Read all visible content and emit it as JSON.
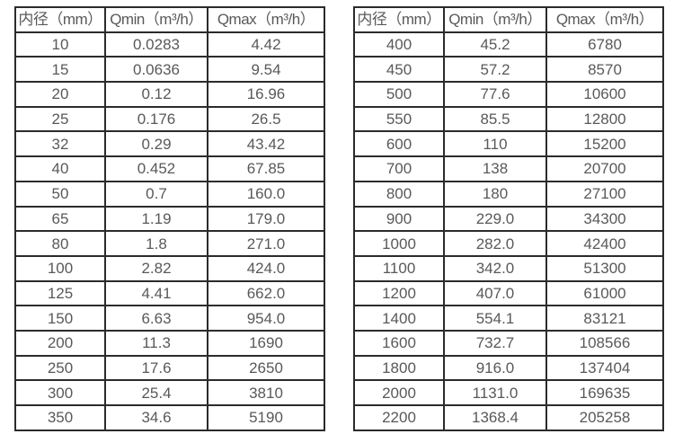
{
  "page": {
    "background": "#ffffff",
    "border_color": "#2b2b2b",
    "text_color": "#595959"
  },
  "chart_data": [
    {
      "type": "table",
      "title": "",
      "columns": [
        "内径（mm）",
        "Qmin（m³/h）",
        "Qmax（m³/h）"
      ],
      "rows": [
        [
          "10",
          "0.0283",
          "4.42"
        ],
        [
          "15",
          "0.0636",
          "9.54"
        ],
        [
          "20",
          "0.12",
          "16.96"
        ],
        [
          "25",
          "0.176",
          "26.5"
        ],
        [
          "32",
          "0.29",
          "43.42"
        ],
        [
          "40",
          "0.452",
          "67.85"
        ],
        [
          "50",
          "0.7",
          "160.0"
        ],
        [
          "65",
          "1.19",
          "179.0"
        ],
        [
          "80",
          "1.8",
          "271.0"
        ],
        [
          "100",
          "2.82",
          "424.0"
        ],
        [
          "125",
          "4.41",
          "662.0"
        ],
        [
          "150",
          "6.63",
          "954.0"
        ],
        [
          "200",
          "11.3",
          "1690"
        ],
        [
          "250",
          "17.6",
          "2650"
        ],
        [
          "300",
          "25.4",
          "3810"
        ],
        [
          "350",
          "34.6",
          "5190"
        ]
      ]
    },
    {
      "type": "table",
      "title": "",
      "columns": [
        "内径（mm）",
        "Qmin（m³/h）",
        "Qmax（m³/h）"
      ],
      "rows": [
        [
          "400",
          "45.2",
          "6780"
        ],
        [
          "450",
          "57.2",
          "8570"
        ],
        [
          "500",
          "77.6",
          "10600"
        ],
        [
          "550",
          "85.5",
          "12800"
        ],
        [
          "600",
          "110",
          "15200"
        ],
        [
          "700",
          "138",
          "20700"
        ],
        [
          "800",
          "180",
          "27100"
        ],
        [
          "900",
          "229.0",
          "34300"
        ],
        [
          "1000",
          "282.0",
          "42400"
        ],
        [
          "1100",
          "342.0",
          "51300"
        ],
        [
          "1200",
          "407.0",
          "61000"
        ],
        [
          "1400",
          "554.1",
          "83121"
        ],
        [
          "1600",
          "732.7",
          "108566"
        ],
        [
          "1800",
          "916.0",
          "137404"
        ],
        [
          "2000",
          "1131.0",
          "169635"
        ],
        [
          "2200",
          "1368.4",
          "205258"
        ]
      ]
    }
  ]
}
